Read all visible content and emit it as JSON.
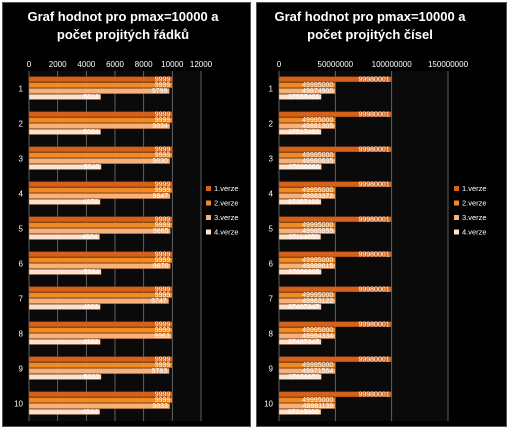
{
  "colors": {
    "background": "#000000",
    "series": [
      "#d4621a",
      "#f08a24",
      "#f6b27a",
      "#fbe2cf"
    ],
    "grid": "#777777",
    "text": "#ffffff"
  },
  "chart_data": [
    {
      "type": "bar",
      "orientation": "horizontal",
      "title_lines": [
        "Graf hodnot pro pmax=10000 a",
        "počet projitých řádků"
      ],
      "categories": [
        "1",
        "2",
        "3",
        "4",
        "5",
        "6",
        "7",
        "8",
        "9",
        "10"
      ],
      "series": [
        {
          "name": "1.verze",
          "values": [
            9999,
            9999,
            9999,
            9999,
            9999,
            9999,
            9999,
            9999,
            9999,
            9999
          ]
        },
        {
          "name": "2.verze",
          "values": [
            9999,
            9999,
            9999,
            9999,
            9999,
            9999,
            9999,
            9999,
            9999,
            9999
          ]
        },
        {
          "name": "3.verze",
          "values": [
            9799,
            9834,
            9830,
            9847,
            9865,
            9870,
            9747,
            9963,
            9783,
            9833
          ]
        },
        {
          "name": "4.verze",
          "values": [
            5012,
            5004,
            5040,
            4972,
            4924,
            5034,
            4982,
            4982,
            5032,
            4944
          ]
        }
      ],
      "xlim": [
        0,
        12000
      ],
      "xticks": [
        0,
        2000,
        4000,
        6000,
        8000,
        10000,
        12000
      ],
      "x_tick_labels": [
        "0",
        "2000",
        "4000",
        "6000",
        "8000",
        "10000",
        "12000"
      ],
      "grid": true,
      "legend_position": "right"
    },
    {
      "type": "bar",
      "orientation": "horizontal",
      "title_lines": [
        "Graf hodnot pro pmax=10000 a",
        "počet projitých čísel"
      ],
      "categories": [
        "1",
        "2",
        "3",
        "4",
        "5",
        "6",
        "7",
        "8",
        "9",
        "10"
      ],
      "series": [
        {
          "name": "1.verze",
          "values": [
            99980001,
            99980001,
            99980001,
            99980001,
            99980001,
            99980001,
            99980001,
            99980001,
            99980001,
            99980001
          ]
        },
        {
          "name": "2.verze",
          "values": [
            49995000,
            49995000,
            49995000,
            49995000,
            49995000,
            49995000,
            49995000,
            49995000,
            49995000,
            49995000
          ]
        },
        {
          "name": "3.verze",
          "values": [
            49974900,
            49981305,
            49980635,
            49983372,
            49985955,
            49988615,
            49963122,
            49994334,
            49971564,
            49981139
          ]
        },
        {
          "name": "4.verze",
          "values": [
            37557422,
            37517490,
            37696680,
            37357122,
            37114650,
            37666905,
            37407347,
            37407347,
            37656972,
            37215960
          ]
        }
      ],
      "xlim": [
        0,
        150000000
      ],
      "xticks": [
        0,
        50000000,
        100000000,
        150000000
      ],
      "x_tick_labels": [
        "0",
        "50000000",
        "100000000",
        "150000000"
      ],
      "grid": true,
      "legend_position": "right"
    }
  ]
}
